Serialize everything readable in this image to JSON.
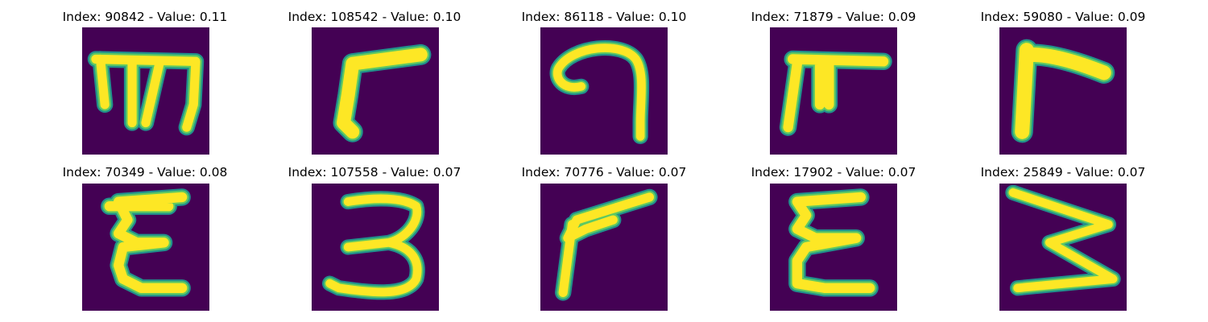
{
  "colors": {
    "background": "#440154",
    "stroke_core": "#fde725",
    "stroke_mid": "#5ec962",
    "stroke_edge": "#21918c"
  },
  "panels": [
    {
      "title": "Index: 90842 - Value: 0.11"
    },
    {
      "title": "Index: 108542 - Value: 0.10"
    },
    {
      "title": "Index: 86118 - Value: 0.10"
    },
    {
      "title": "Index: 71879 - Value: 0.09"
    },
    {
      "title": "Index: 59080 - Value: 0.09"
    },
    {
      "title": "Index: 70349 - Value: 0.08"
    },
    {
      "title": "Index: 107558 - Value: 0.07"
    },
    {
      "title": "Index: 70776 - Value: 0.07"
    },
    {
      "title": "Index: 17902 - Value: 0.07"
    },
    {
      "title": "Index: 25849 - Value: 0.07"
    }
  ]
}
